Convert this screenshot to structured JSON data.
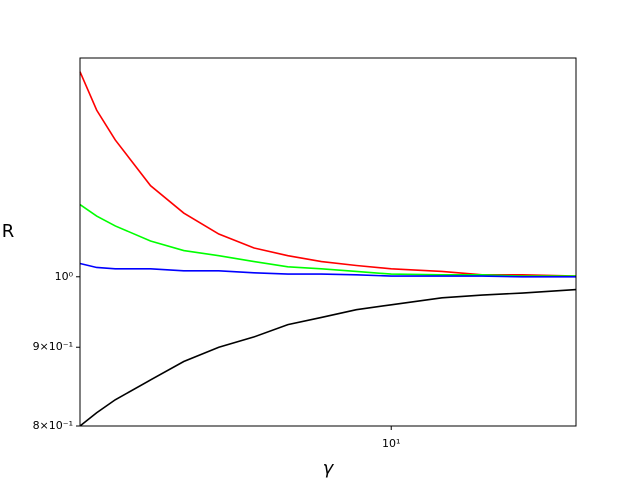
{
  "chart_data": {
    "type": "line",
    "xlabel": "γ",
    "ylabel": "R",
    "xscale": "log",
    "yscale": "log",
    "x": [
      2,
      2.18,
      2.4,
      2.88,
      3.42,
      4.1,
      4.92,
      5.86,
      6.97,
      8.35,
      10,
      13,
      16,
      19.7,
      26
    ],
    "series": [
      {
        "color": "#ff0000",
        "values": [
          1.359,
          1.283,
          1.227,
          1.146,
          1.1,
          1.066,
          1.044,
          1.032,
          1.023,
          1.017,
          1.012,
          1.008,
          1.003,
          1.003,
          1.001
        ]
      },
      {
        "color": "#00ff00",
        "values": [
          1.114,
          1.095,
          1.079,
          1.055,
          1.04,
          1.032,
          1.023,
          1.015,
          1.012,
          1.008,
          1.004,
          1.003,
          1.003,
          1.001,
          1.001
        ]
      },
      {
        "color": "#0000ff",
        "values": [
          1.02,
          1.014,
          1.012,
          1.012,
          1.009,
          1.009,
          1.006,
          1.004,
          1.004,
          1.003,
          1.001,
          1.001,
          1.001,
          1.0,
          1.0
        ]
      },
      {
        "color": "#000000",
        "values": [
          0.8,
          0.816,
          0.832,
          0.857,
          0.881,
          0.9,
          0.914,
          0.931,
          0.941,
          0.952,
          0.959,
          0.969,
          0.973,
          0.976,
          0.981
        ]
      }
    ],
    "xlim": [
      2,
      26
    ],
    "ylim": [
      0.8,
      1.387
    ],
    "xticks": [
      {
        "value": 10,
        "label": "10¹"
      }
    ],
    "yticks": [
      {
        "value": 0.8,
        "label": "8×10⁻¹"
      },
      {
        "value": 0.9,
        "label": "9×10⁻¹"
      },
      {
        "value": 1,
        "label": "10⁰"
      }
    ]
  }
}
